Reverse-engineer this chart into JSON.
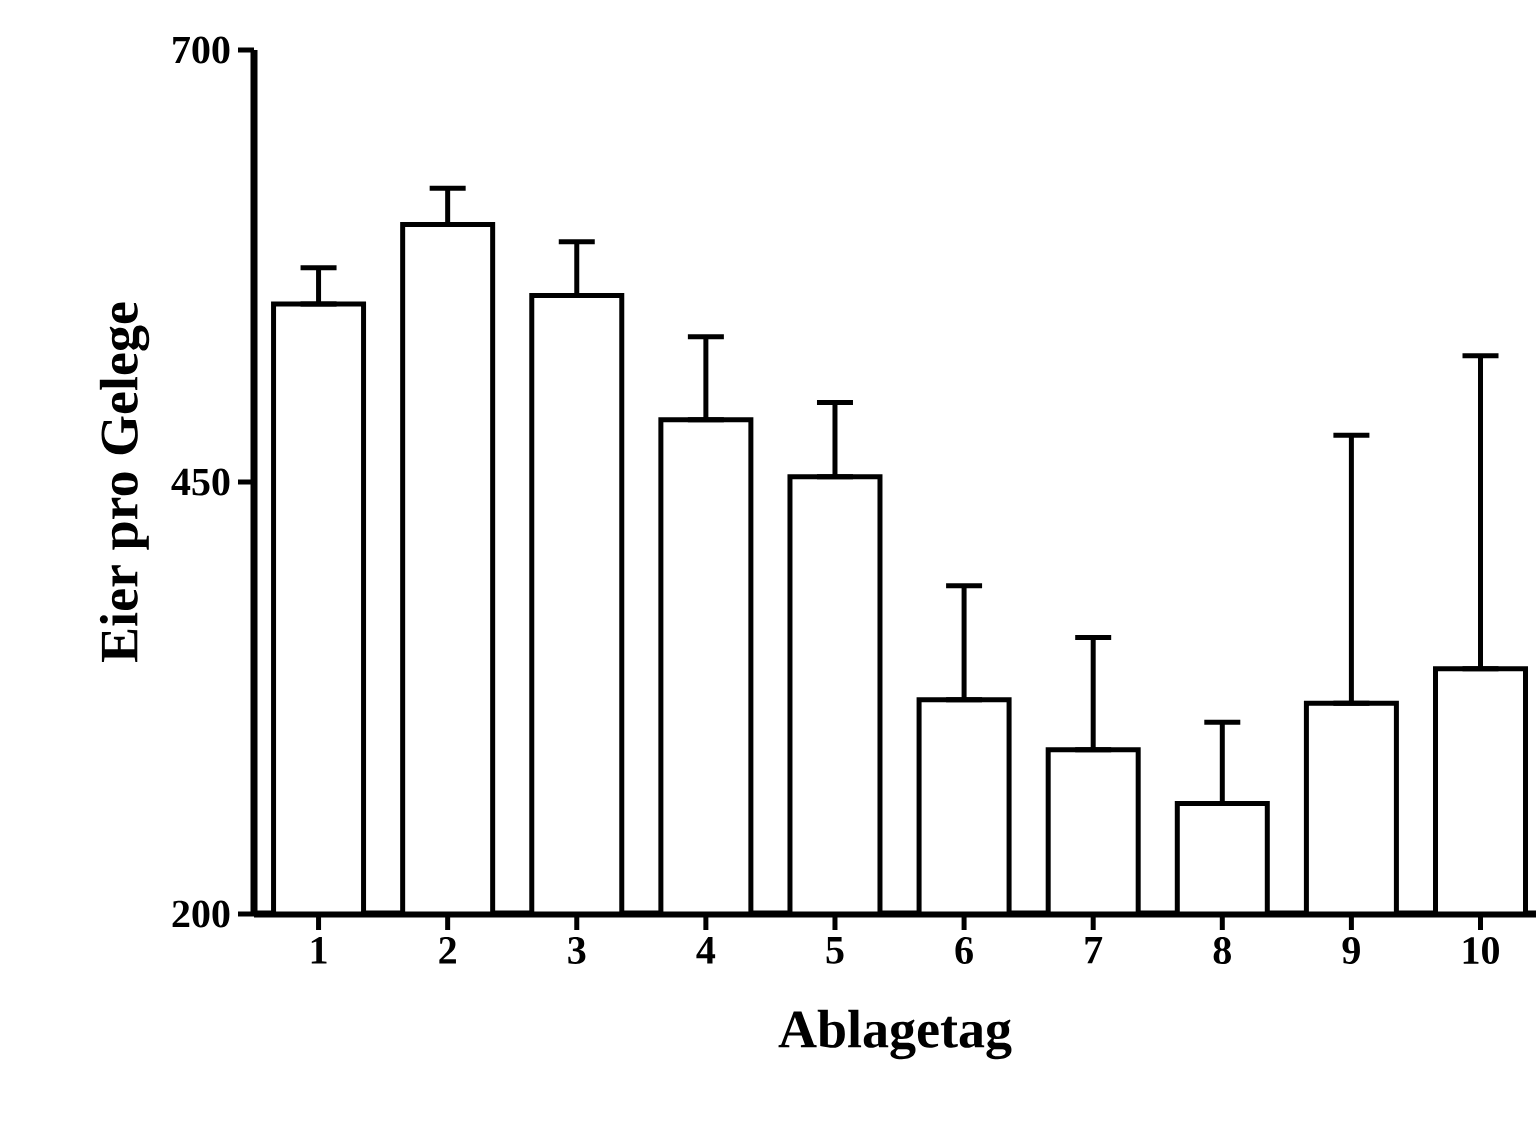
{
  "chart_data": {
    "type": "bar",
    "xlabel": "Ablagetag",
    "ylabel": "Eier pro Gelege",
    "categories": [
      "1",
      "2",
      "3",
      "4",
      "5",
      "6",
      "7",
      "8",
      "9",
      "10"
    ],
    "values": [
      553,
      599,
      558,
      486,
      453,
      324,
      295,
      264,
      322,
      342
    ],
    "errors": [
      [
        553,
        574
      ],
      [
        599,
        620
      ],
      [
        558,
        589
      ],
      [
        486,
        534
      ],
      [
        453,
        496
      ],
      [
        324,
        390
      ],
      [
        295,
        360
      ],
      [
        264,
        311
      ],
      [
        322,
        477
      ],
      [
        342,
        523
      ]
    ],
    "color": "#ffffff",
    "ylim": [
      200,
      700
    ],
    "yticks": [
      200,
      450,
      700
    ],
    "grid": false
  }
}
